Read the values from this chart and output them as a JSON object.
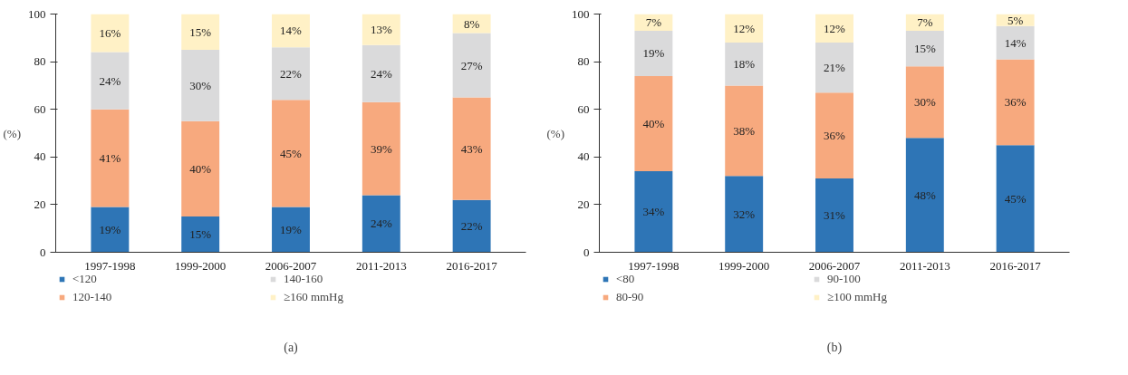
{
  "chart_data": [
    {
      "type": "bar",
      "stacked": true,
      "categories": [
        "1997-1998",
        "1999-2000",
        "2006-2007",
        "2011-2013",
        "2016-2017"
      ],
      "ylabel": "(%)",
      "ylim": [
        0,
        100
      ],
      "yticks": [
        0,
        20,
        40,
        60,
        80,
        100
      ],
      "grid": false,
      "legend": "bottom",
      "annotations": [
        "(a)"
      ],
      "series": [
        {
          "name": "<120",
          "color": "#2e75b6",
          "values": [
            19,
            15,
            19,
            24,
            22
          ],
          "value_labels": [
            "19%",
            "15%",
            "19%",
            "24%",
            "22%"
          ]
        },
        {
          "name": "120-140",
          "color": "#f7a97e",
          "values": [
            41,
            40,
            45,
            39,
            43
          ],
          "value_labels": [
            "41%",
            "40%",
            "45%",
            "39%",
            "43%"
          ]
        },
        {
          "name": "140-160",
          "color": "#dadadb",
          "values": [
            24,
            30,
            22,
            24,
            27
          ],
          "value_labels": [
            "24%",
            "30%",
            "22%",
            "24%",
            "27%"
          ]
        },
        {
          "name": "≥160 mmHg",
          "color": "#fff1c6",
          "values": [
            16,
            15,
            14,
            13,
            8
          ],
          "value_labels": [
            "16%",
            "15%",
            "14%",
            "13%",
            "8%"
          ]
        }
      ]
    },
    {
      "type": "bar",
      "stacked": true,
      "categories": [
        "1997-1998",
        "1999-2000",
        "2006-2007",
        "2011-2013",
        "2016-2017"
      ],
      "ylabel": "(%)",
      "ylim": [
        0,
        100
      ],
      "yticks": [
        0,
        20,
        40,
        60,
        80,
        100
      ],
      "grid": false,
      "legend": "bottom",
      "annotations": [
        "(b)"
      ],
      "series": [
        {
          "name": "<80",
          "color": "#2e75b6",
          "values": [
            34,
            32,
            31,
            48,
            45
          ],
          "value_labels": [
            "34%",
            "32%",
            "31%",
            "48%",
            "45%"
          ]
        },
        {
          "name": "80-90",
          "color": "#f7a97e",
          "values": [
            40,
            38,
            36,
            30,
            36
          ],
          "value_labels": [
            "40%",
            "38%",
            "36%",
            "30%",
            "36%"
          ]
        },
        {
          "name": "90-100",
          "color": "#dadadb",
          "values": [
            19,
            18,
            21,
            15,
            14
          ],
          "value_labels": [
            "19%",
            "18%",
            "21%",
            "15%",
            "14%"
          ]
        },
        {
          "name": "≥100 mmHg",
          "color": "#fff1c6",
          "values": [
            7,
            12,
            12,
            7,
            5
          ],
          "value_labels": [
            "7%",
            "12%",
            "12%",
            "7%",
            "5%"
          ]
        }
      ]
    }
  ]
}
